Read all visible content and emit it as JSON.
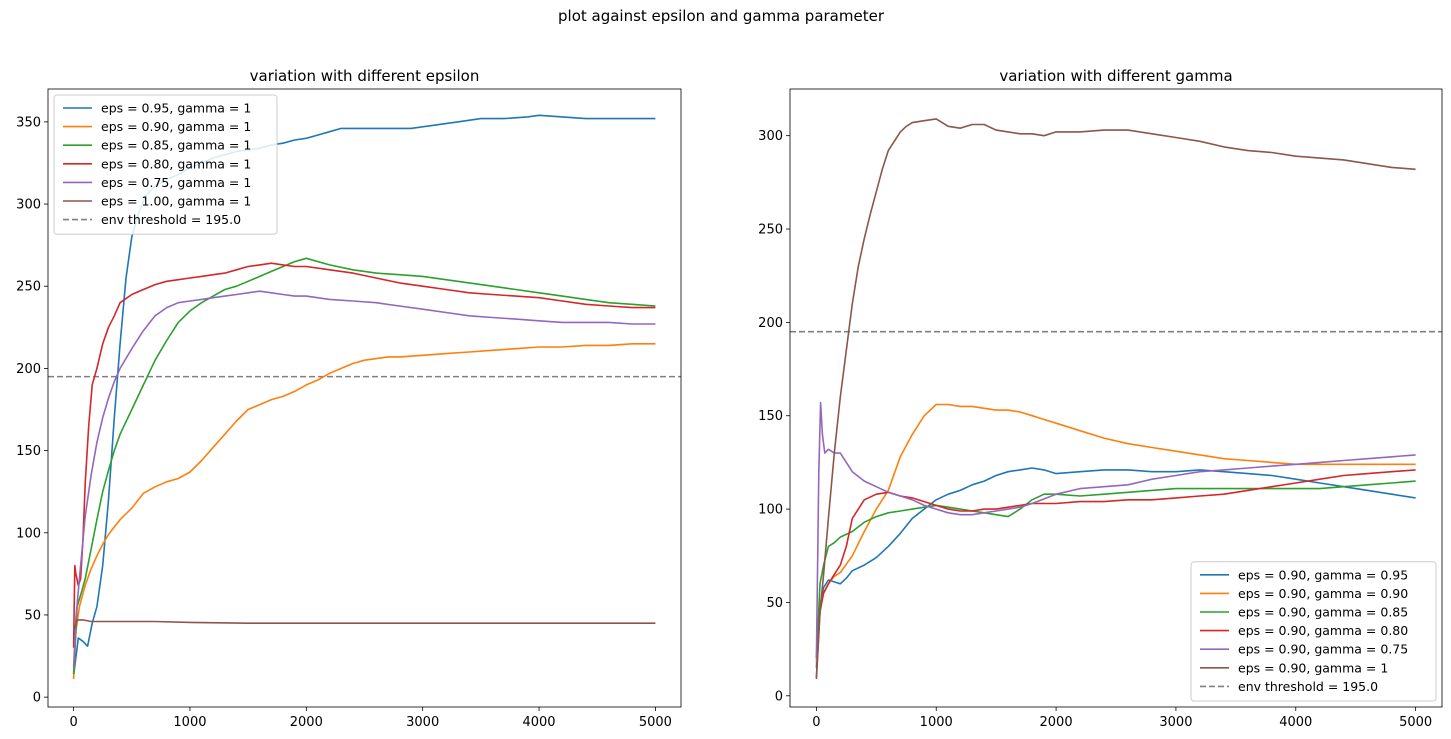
{
  "figure": {
    "suptitle": "plot against epsilon and gamma parameter"
  },
  "colors": {
    "blue": "#1f77b4",
    "orange": "#ff7f0e",
    "green": "#2ca02c",
    "red": "#d62728",
    "purple": "#9467bd",
    "brown": "#8c564b",
    "threshold": "#808080"
  },
  "chart_data": [
    {
      "type": "line",
      "title": "variation with different epsilon",
      "xlabel": "",
      "ylabel": "",
      "xlim": [
        -220,
        5220
      ],
      "ylim": [
        -6,
        370
      ],
      "xticks": [
        0,
        1000,
        2000,
        3000,
        4000,
        5000
      ],
      "yticks": [
        0,
        50,
        100,
        150,
        200,
        250,
        300,
        350
      ],
      "grid": false,
      "legend_position": "upper left",
      "threshold": {
        "label": "env threshold = 195.0",
        "y": 195.0,
        "style": "dashed",
        "color": "#808080"
      },
      "series": [
        {
          "name": "eps = 0.95, gamma = 1",
          "color": "#1f77b4",
          "x": [
            0,
            40,
            80,
            120,
            160,
            200,
            250,
            300,
            350,
            400,
            450,
            500,
            560,
            620,
            700,
            800,
            900,
            1000,
            1100,
            1200,
            1300,
            1400,
            1500,
            1600,
            1700,
            1800,
            1900,
            2000,
            2100,
            2200,
            2300,
            2500,
            2700,
            2900,
            3100,
            3300,
            3500,
            3700,
            3900,
            4000,
            4200,
            4400,
            4600,
            4800,
            5000
          ],
          "y": [
            13,
            36,
            34,
            31,
            45,
            55,
            80,
            120,
            170,
            215,
            255,
            280,
            295,
            305,
            311,
            315,
            318,
            322,
            325,
            328,
            330,
            332,
            333,
            334,
            336,
            337,
            339,
            340,
            342,
            344,
            346,
            346,
            346,
            346,
            348,
            350,
            352,
            352,
            353,
            354,
            353,
            352,
            352,
            352,
            352
          ]
        },
        {
          "name": "eps = 0.90, gamma = 1",
          "color": "#ff7f0e",
          "x": [
            0,
            20,
            50,
            100,
            150,
            200,
            250,
            300,
            400,
            500,
            600,
            700,
            800,
            900,
            1000,
            1100,
            1200,
            1300,
            1400,
            1500,
            1600,
            1700,
            1800,
            1900,
            2000,
            2100,
            2200,
            2300,
            2400,
            2500,
            2600,
            2700,
            2800,
            3000,
            3200,
            3400,
            3600,
            3800,
            4000,
            4200,
            4400,
            4600,
            4800,
            5000
          ],
          "y": [
            11,
            40,
            55,
            68,
            78,
            86,
            93,
            99,
            108,
            115,
            124,
            128,
            131,
            133,
            137,
            144,
            152,
            160,
            168,
            175,
            178,
            181,
            183,
            186,
            190,
            193,
            197,
            200,
            203,
            205,
            206,
            207,
            207,
            208,
            209,
            210,
            211,
            212,
            213,
            213,
            214,
            214,
            215,
            215
          ]
        },
        {
          "name": "eps = 0.85, gamma = 1",
          "color": "#2ca02c",
          "x": [
            0,
            30,
            60,
            100,
            150,
            200,
            250,
            300,
            350,
            400,
            500,
            600,
            700,
            800,
            900,
            1000,
            1100,
            1200,
            1300,
            1400,
            1500,
            1600,
            1700,
            1800,
            1900,
            2000,
            2200,
            2400,
            2600,
            2800,
            3000,
            3200,
            3400,
            3600,
            3800,
            4000,
            4200,
            4400,
            4600,
            4800,
            5000
          ],
          "y": [
            14,
            55,
            62,
            72,
            90,
            108,
            125,
            138,
            150,
            160,
            175,
            190,
            205,
            217,
            228,
            235,
            240,
            244,
            248,
            250,
            253,
            256,
            259,
            262,
            265,
            267,
            263,
            260,
            258,
            257,
            256,
            254,
            252,
            250,
            248,
            246,
            244,
            242,
            240,
            239,
            238
          ]
        },
        {
          "name": "eps = 0.80, gamma = 1",
          "color": "#d62728",
          "x": [
            0,
            10,
            20,
            40,
            60,
            80,
            100,
            130,
            160,
            200,
            250,
            300,
            350,
            400,
            500,
            600,
            700,
            800,
            900,
            1000,
            1100,
            1200,
            1300,
            1400,
            1500,
            1600,
            1700,
            1800,
            1900,
            2000,
            2200,
            2400,
            2600,
            2800,
            3000,
            3200,
            3400,
            3600,
            3800,
            4000,
            4200,
            4400,
            4600,
            4800,
            5000
          ],
          "y": [
            30,
            80,
            75,
            68,
            72,
            95,
            130,
            165,
            190,
            200,
            215,
            225,
            232,
            240,
            245,
            248,
            251,
            253,
            254,
            255,
            256,
            257,
            258,
            260,
            262,
            263,
            264,
            263,
            262,
            262,
            260,
            258,
            255,
            252,
            250,
            248,
            246,
            245,
            244,
            243,
            241,
            239,
            238,
            237,
            237
          ]
        },
        {
          "name": "eps = 0.75, gamma = 1",
          "color": "#9467bd",
          "x": [
            0,
            20,
            50,
            100,
            150,
            200,
            250,
            300,
            350,
            400,
            500,
            600,
            700,
            800,
            900,
            1000,
            1100,
            1200,
            1300,
            1400,
            1500,
            1600,
            1700,
            1800,
            1900,
            2000,
            2200,
            2400,
            2600,
            2800,
            3000,
            3200,
            3400,
            3600,
            3800,
            4000,
            4200,
            4400,
            4600,
            4800,
            5000
          ],
          "y": [
            18,
            48,
            72,
            110,
            135,
            155,
            170,
            182,
            192,
            200,
            212,
            223,
            232,
            237,
            240,
            241,
            242,
            243,
            244,
            245,
            246,
            247,
            246,
            245,
            244,
            244,
            242,
            241,
            240,
            238,
            236,
            234,
            232,
            231,
            230,
            229,
            228,
            228,
            228,
            227,
            227
          ]
        },
        {
          "name": "eps = 1.00, gamma = 1",
          "color": "#8c564b",
          "x": [
            0,
            30,
            80,
            150,
            300,
            500,
            700,
            1000,
            1500,
            2000,
            3000,
            4000,
            5000
          ],
          "y": [
            40,
            47,
            47,
            46,
            46,
            46,
            46,
            45.5,
            45,
            45,
            45,
            45,
            45
          ]
        }
      ]
    },
    {
      "type": "line",
      "title": "variation with different gamma",
      "xlabel": "",
      "ylabel": "",
      "xlim": [
        -220,
        5220
      ],
      "ylim": [
        -6,
        325
      ],
      "xticks": [
        0,
        1000,
        2000,
        3000,
        4000,
        5000
      ],
      "yticks": [
        0,
        50,
        100,
        150,
        200,
        250,
        300
      ],
      "grid": false,
      "legend_position": "lower right",
      "threshold": {
        "label": "env threshold = 195.0",
        "y": 195.0,
        "style": "dashed",
        "color": "#808080"
      },
      "series": [
        {
          "name": "eps = 0.90, gamma = 0.95",
          "color": "#1f77b4",
          "x": [
            0,
            30,
            60,
            100,
            150,
            200,
            250,
            300,
            400,
            500,
            600,
            700,
            800,
            900,
            1000,
            1100,
            1200,
            1300,
            1400,
            1500,
            1600,
            1700,
            1800,
            1900,
            2000,
            2200,
            2400,
            2600,
            2800,
            3000,
            3200,
            3400,
            3600,
            3800,
            4000,
            4200,
            4400,
            4600,
            4800,
            5000
          ],
          "y": [
            15,
            48,
            58,
            62,
            61,
            60,
            63,
            67,
            70,
            74,
            80,
            87,
            95,
            100,
            105,
            108,
            110,
            113,
            115,
            118,
            120,
            121,
            122,
            121,
            119,
            120,
            121,
            121,
            120,
            120,
            121,
            120,
            119,
            118,
            116,
            114,
            112,
            110,
            108,
            106
          ]
        },
        {
          "name": "eps = 0.90, gamma = 0.90",
          "color": "#ff7f0e",
          "x": [
            0,
            30,
            60,
            100,
            150,
            200,
            300,
            400,
            500,
            600,
            700,
            800,
            900,
            1000,
            1100,
            1200,
            1300,
            1400,
            1500,
            1600,
            1700,
            1800,
            1900,
            2000,
            2200,
            2400,
            2600,
            2800,
            3000,
            3200,
            3400,
            3600,
            3800,
            4000,
            4200,
            4400,
            4600,
            4800,
            5000
          ],
          "y": [
            18,
            50,
            55,
            60,
            64,
            66,
            75,
            88,
            100,
            110,
            128,
            140,
            150,
            156,
            156,
            155,
            155,
            154,
            153,
            153,
            152,
            150,
            148,
            146,
            142,
            138,
            135,
            133,
            131,
            129,
            127,
            126,
            125,
            124,
            124,
            124,
            124,
            124,
            124
          ]
        },
        {
          "name": "eps = 0.90, gamma = 0.85",
          "color": "#2ca02c",
          "x": [
            0,
            30,
            60,
            100,
            150,
            200,
            300,
            400,
            500,
            600,
            700,
            800,
            900,
            1000,
            1100,
            1200,
            1300,
            1400,
            1500,
            1600,
            1700,
            1800,
            1900,
            2000,
            2200,
            2400,
            2600,
            2800,
            3000,
            3200,
            3400,
            3600,
            3800,
            4000,
            4200,
            4400,
            4600,
            4800,
            5000
          ],
          "y": [
            20,
            60,
            70,
            80,
            82,
            85,
            88,
            93,
            96,
            98,
            99,
            100,
            101,
            102,
            101,
            100,
            99,
            98,
            97,
            96,
            100,
            105,
            108,
            108,
            107,
            108,
            109,
            110,
            111,
            111,
            111,
            111,
            111,
            111,
            111,
            112,
            113,
            114,
            115
          ]
        },
        {
          "name": "eps = 0.90, gamma = 0.80",
          "color": "#d62728",
          "x": [
            0,
            30,
            60,
            100,
            150,
            200,
            250,
            300,
            400,
            500,
            600,
            700,
            800,
            900,
            1000,
            1100,
            1200,
            1300,
            1400,
            1500,
            1600,
            1700,
            1800,
            2000,
            2200,
            2400,
            2600,
            2800,
            3000,
            3200,
            3400,
            3600,
            3800,
            4000,
            4200,
            4400,
            4600,
            4800,
            5000
          ],
          "y": [
            10,
            45,
            55,
            60,
            65,
            70,
            80,
            95,
            105,
            108,
            109,
            107,
            106,
            104,
            102,
            100,
            99,
            99,
            100,
            100,
            101,
            102,
            103,
            103,
            104,
            104,
            105,
            105,
            106,
            107,
            108,
            110,
            112,
            114,
            116,
            118,
            119,
            120,
            121
          ]
        },
        {
          "name": "eps = 0.90, gamma = 0.75",
          "color": "#9467bd",
          "x": [
            0,
            20,
            35,
            50,
            70,
            100,
            150,
            200,
            250,
            300,
            400,
            500,
            600,
            700,
            800,
            900,
            1000,
            1100,
            1200,
            1300,
            1400,
            1500,
            1600,
            1700,
            1800,
            2000,
            2200,
            2400,
            2600,
            2800,
            3000,
            3200,
            3400,
            3600,
            3800,
            4000,
            4200,
            4400,
            4600,
            4800,
            5000
          ],
          "y": [
            20,
            120,
            157,
            140,
            130,
            132,
            130,
            130,
            125,
            120,
            115,
            112,
            109,
            107,
            105,
            102,
            100,
            98,
            97,
            97,
            98,
            99,
            100,
            101,
            103,
            108,
            111,
            112,
            113,
            116,
            118,
            120,
            121,
            122,
            123,
            124,
            125,
            126,
            127,
            128,
            129
          ]
        },
        {
          "name": "eps = 0.90, gamma = 1",
          "color": "#8c564b",
          "x": [
            0,
            30,
            60,
            100,
            150,
            200,
            250,
            300,
            350,
            400,
            450,
            500,
            550,
            600,
            650,
            700,
            750,
            800,
            900,
            1000,
            1100,
            1200,
            1300,
            1400,
            1500,
            1600,
            1700,
            1800,
            1900,
            2000,
            2200,
            2400,
            2600,
            2800,
            3000,
            3200,
            3400,
            3600,
            3800,
            4000,
            4200,
            4400,
            4600,
            4800,
            5000
          ],
          "y": [
            9,
            45,
            65,
            95,
            130,
            160,
            185,
            210,
            230,
            245,
            258,
            270,
            282,
            292,
            297,
            302,
            305,
            307,
            308,
            309,
            305,
            304,
            306,
            306,
            303,
            302,
            301,
            301,
            300,
            302,
            302,
            303,
            303,
            301,
            299,
            297,
            294,
            292,
            291,
            289,
            288,
            287,
            285,
            283,
            282
          ]
        }
      ]
    }
  ]
}
